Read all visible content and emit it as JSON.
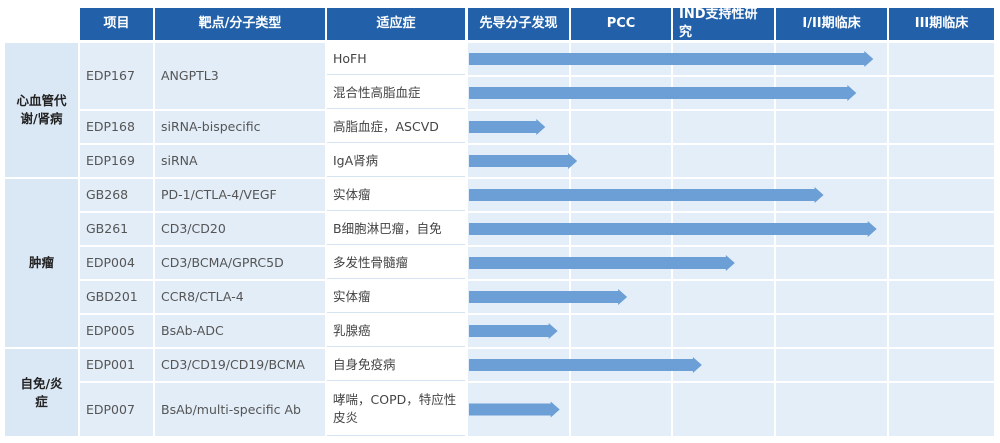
{
  "header": {
    "columns": [
      "项目",
      "靶点/分子类型",
      "适应症"
    ],
    "stages": [
      "先导分子发现",
      "PCC",
      "IND支持性研究",
      "I/II期临床",
      "III期临床"
    ]
  },
  "groups": [
    {
      "label": "心血管代谢/肾病",
      "projects": [
        {
          "id": "EDP167",
          "target": "ANGPTL3",
          "indications": [
            {
              "name": "HoFH",
              "progress": 3.87
            },
            {
              "name": "混合性高脂血症",
              "progress": 3.72
            }
          ]
        },
        {
          "id": "EDP168",
          "target": "siRNA-bispecific",
          "indications": [
            {
              "name": "高脂血症，ASCVD",
              "progress": 0.76
            }
          ]
        },
        {
          "id": "EDP169",
          "target": "siRNA",
          "indications": [
            {
              "name": "IgA肾病",
              "progress": 1.07
            }
          ]
        }
      ]
    },
    {
      "label": "肿瘤",
      "projects": [
        {
          "id": "GB268",
          "target": "PD-1/CTLA-4/VEGF",
          "indications": [
            {
              "name": "实体瘤",
              "progress": 3.43
            }
          ]
        },
        {
          "id": "GB261",
          "target": "CD3/CD20",
          "indications": [
            {
              "name": "B细胞淋巴瘤，自免",
              "progress": 3.9
            }
          ]
        },
        {
          "id": "EDP004",
          "target": "CD3/BCMA/GPRC5D",
          "indications": [
            {
              "name": "多发性骨髓瘤",
              "progress": 2.61
            }
          ]
        },
        {
          "id": "GBD201",
          "target": "CCR8/CTLA-4",
          "indications": [
            {
              "name": "实体瘤",
              "progress": 1.56
            }
          ]
        },
        {
          "id": "EDP005",
          "target": "BsAb-ADC",
          "indications": [
            {
              "name": "乳腺癌",
              "progress": 0.88
            }
          ]
        }
      ]
    },
    {
      "label": "自免/炎症",
      "projects": [
        {
          "id": "EDP001",
          "target": "CD3/CD19/CD19/BCMA",
          "indications": [
            {
              "name": "自身免疫病",
              "progress": 2.29
            }
          ]
        },
        {
          "id": "EDP007",
          "target": "BsAb/multi-specific Ab",
          "indications": [
            {
              "name": "哮喘，COPD，特应性皮炎",
              "progress": 0.9
            }
          ]
        }
      ]
    }
  ]
}
